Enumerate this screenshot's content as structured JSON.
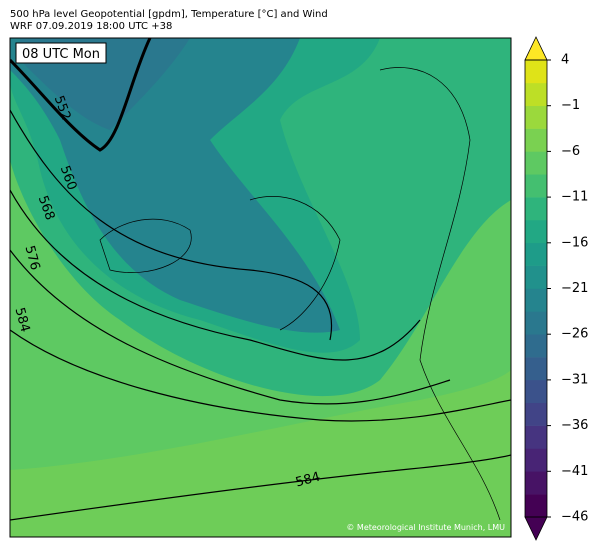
{
  "header": {
    "title": "500 hPa level Geopotential [gpdm], Temperature [°C] and Wind",
    "subtitle": "WRF 07.09.2019 18:00 UTC +38"
  },
  "map": {
    "time_label": "08 UTC Mon",
    "credit": "© Meteorological Institute Munich, LMU",
    "contour_labels": [
      "552",
      "560",
      "568",
      "576",
      "584",
      "584"
    ]
  },
  "colorbar": {
    "ticks": [
      {
        "value": 4,
        "label": "4"
      },
      {
        "value": -1,
        "label": "−1"
      },
      {
        "value": -6,
        "label": "−6"
      },
      {
        "value": -11,
        "label": "−11"
      },
      {
        "value": -16,
        "label": "−16"
      },
      {
        "value": -21,
        "label": "−21"
      },
      {
        "value": -26,
        "label": "−26"
      },
      {
        "value": -31,
        "label": "−31"
      },
      {
        "value": -36,
        "label": "−36"
      },
      {
        "value": -41,
        "label": "−41"
      },
      {
        "value": -46,
        "label": "−46"
      }
    ],
    "colors": [
      "#440154",
      "#471365",
      "#482475",
      "#463480",
      "#414487",
      "#3b528b",
      "#355f8d",
      "#2f6c8e",
      "#2a788e",
      "#25848e",
      "#21918c",
      "#1e9c89",
      "#22a884",
      "#2fb47c",
      "#44bf70",
      "#5ec962",
      "#7ad151",
      "#9bd93c",
      "#bddf26",
      "#dfe318"
    ],
    "extend_colors": [
      "#440154",
      "#fde725"
    ]
  }
}
